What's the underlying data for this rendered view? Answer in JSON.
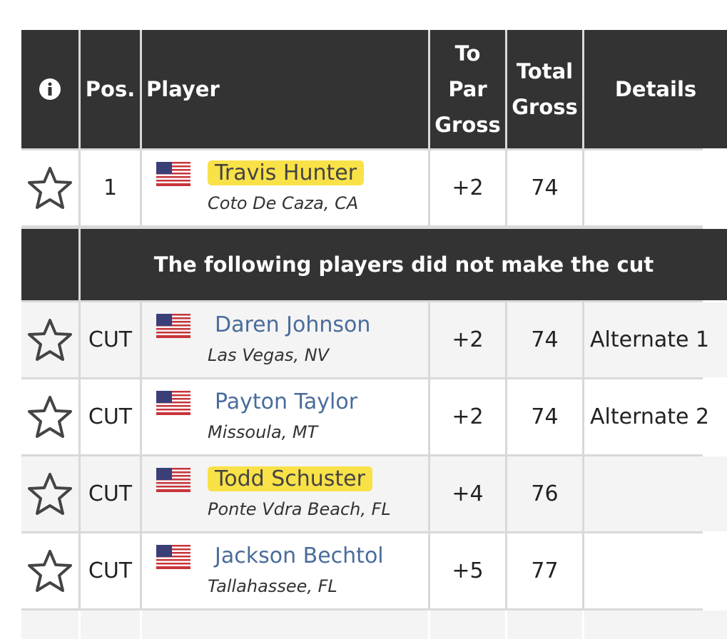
{
  "header": {
    "columns": [
      "Pos.",
      "Player",
      "To Par Gross",
      "Total Gross",
      "Details"
    ]
  },
  "table": {
    "rows_before_cut": [
      {
        "pos": "1",
        "name": "Travis Hunter",
        "location": "Coto De Caza, CA",
        "to_par": "+2",
        "total": "74",
        "highlighted": true
      }
    ],
    "cut_message": "The following players did not make the cut",
    "rows_after_cut": [
      {
        "pos": "CUT",
        "name": "Daren Johnson",
        "location": "Las Vegas, NV",
        "to_par": "+2",
        "total": "74",
        "details": "Alternate 1",
        "highlighted": false
      },
      {
        "pos": "CUT",
        "name": "Payton Taylor",
        "location": "Missoula, MT",
        "to_par": "+2",
        "total": "74",
        "details": "Alternate 2",
        "highlighted": false
      },
      {
        "pos": "CUT",
        "name": "Todd Schuster",
        "location": "Ponte Vdra Beach, FL",
        "to_par": "+4",
        "total": "76",
        "highlighted": true
      },
      {
        "pos": "CUT",
        "name": "Jackson Bechtol",
        "location": "Tallahassee, FL",
        "to_par": "+5",
        "total": "77",
        "highlighted": false
      }
    ]
  }
}
